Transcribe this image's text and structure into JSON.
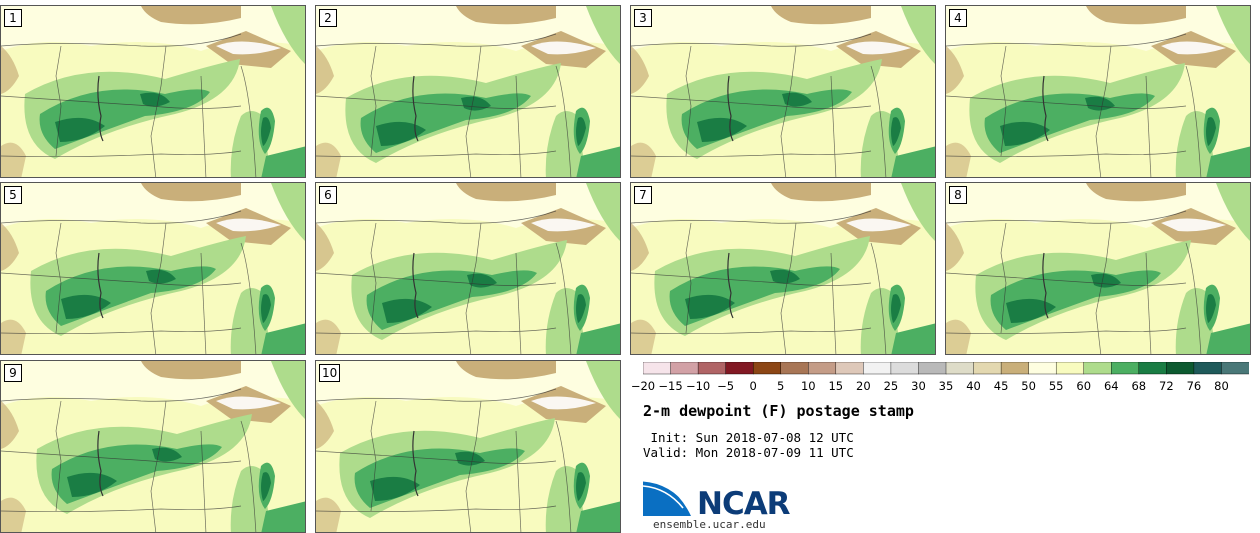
{
  "figure": {
    "title": "2-m dewpoint (F) postage stamp",
    "init": " Init: Sun 2018-07-08 12 UTC",
    "valid": "Valid: Mon 2018-07-09 11 UTC",
    "logo_text": "NCAR",
    "site": "ensemble.ucar.edu"
  },
  "panels": [
    "1",
    "2",
    "3",
    "4",
    "5",
    "6",
    "7",
    "8",
    "9",
    "10"
  ],
  "colorbar": {
    "ticks": [
      "−20",
      "−15",
      "−10",
      "−5",
      "0",
      "5",
      "10",
      "15",
      "20",
      "25",
      "30",
      "35",
      "40",
      "45",
      "50",
      "55",
      "60",
      "64",
      "68",
      "72",
      "76",
      "80"
    ],
    "colors": [
      "#f6e4ea",
      "#d2a1a6",
      "#b06466",
      "#821924",
      "#8c4615",
      "#a87656",
      "#c49c87",
      "#dec8b9",
      "#f2f2f2",
      "#dcdcdc",
      "#b9b9b9",
      "#dedcc8",
      "#e3d8b0",
      "#c9af7a",
      "#fefee0",
      "#f8fbbf",
      "#aedc8c",
      "#4caf62",
      "#1a7d44",
      "#0d5a30",
      "#1f5a5a",
      "#4a7878"
    ]
  },
  "map_colors": {
    "dry": "#c9af7a",
    "light": "#fefee0",
    "base": "#f8fbbf",
    "c60": "#aedc8c",
    "c64": "#4caf62",
    "c68": "#1a7d44",
    "water": "#ffffff"
  }
}
